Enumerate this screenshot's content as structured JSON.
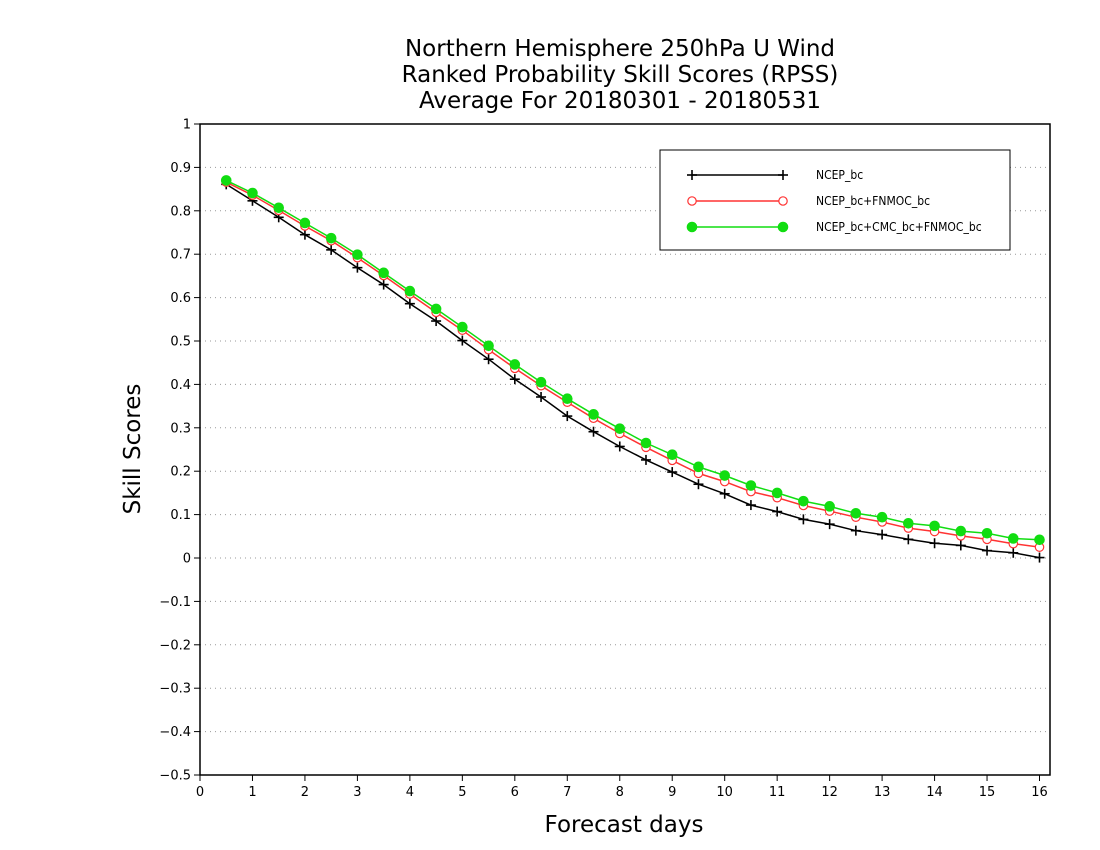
{
  "chart_data": {
    "type": "line",
    "title": "Northern Hemisphere 250hPa U Wind",
    "subtitle": "Ranked Probability Skill Scores (RPSS)",
    "subtitle2": "Average For 20180301 - 20180531",
    "xlabel": "Forecast days",
    "ylabel": "Skill Scores",
    "xlim": [
      0,
      16.2
    ],
    "ylim": [
      -0.5,
      1
    ],
    "x_ticks": [
      "0",
      "1",
      "2",
      "3",
      "4",
      "5",
      "6",
      "7",
      "8",
      "9",
      "10",
      "11",
      "12",
      "13",
      "14",
      "15",
      "16"
    ],
    "y_ticks": [
      "−0.5",
      "−0.4",
      "−0.3",
      "−0.2",
      "−0.1",
      "0",
      "0.1",
      "0.2",
      "0.3",
      "0.4",
      "0.5",
      "0.6",
      "0.7",
      "0.8",
      "0.9",
      "1"
    ],
    "grid": "horizontal dotted",
    "legend_position": "top-right",
    "x": [
      0.5,
      1,
      1.5,
      2,
      2.5,
      3,
      3.5,
      4,
      4.5,
      5,
      5.5,
      6,
      6.5,
      7,
      7.5,
      8,
      8.5,
      9,
      9.5,
      10,
      10.5,
      11,
      11.5,
      12,
      12.5,
      13,
      13.5,
      14,
      14.5,
      15,
      15.5,
      16
    ],
    "series": [
      {
        "name": "NCEP_bc",
        "color": "#000000",
        "marker": "plus",
        "values": [
          0.861,
          0.823,
          0.785,
          0.745,
          0.71,
          0.669,
          0.63,
          0.586,
          0.546,
          0.501,
          0.458,
          0.412,
          0.371,
          0.327,
          0.291,
          0.257,
          0.226,
          0.198,
          0.17,
          0.148,
          0.122,
          0.107,
          0.089,
          0.078,
          0.063,
          0.054,
          0.043,
          0.034,
          0.029,
          0.017,
          0.012,
          0.001
        ]
      },
      {
        "name": "NCEP_bc+FNMOC_bc",
        "color": "#ff3333",
        "marker": "open-circle",
        "values": [
          0.866,
          0.836,
          0.801,
          0.765,
          0.731,
          0.692,
          0.651,
          0.608,
          0.566,
          0.525,
          0.48,
          0.437,
          0.397,
          0.359,
          0.322,
          0.287,
          0.255,
          0.225,
          0.195,
          0.176,
          0.153,
          0.139,
          0.121,
          0.108,
          0.094,
          0.083,
          0.069,
          0.061,
          0.051,
          0.043,
          0.033,
          0.025
        ]
      },
      {
        "name": "NCEP_bc+CMC_bc+FNMOC_bc",
        "color": "#11dd11",
        "marker": "filled-circle",
        "values": [
          0.87,
          0.841,
          0.807,
          0.772,
          0.737,
          0.699,
          0.657,
          0.615,
          0.574,
          0.532,
          0.489,
          0.446,
          0.405,
          0.367,
          0.331,
          0.298,
          0.265,
          0.238,
          0.21,
          0.19,
          0.167,
          0.15,
          0.131,
          0.119,
          0.103,
          0.094,
          0.08,
          0.074,
          0.062,
          0.057,
          0.045,
          0.042
        ]
      }
    ]
  }
}
